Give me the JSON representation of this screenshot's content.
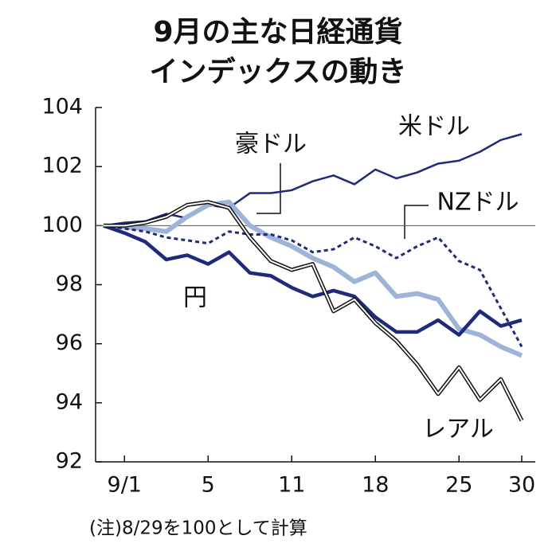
{
  "chart_data": {
    "type": "line",
    "title": [
      "9月の主な日経通貨",
      "インデックスの動き"
    ],
    "note": "(注)8/29を100として計算",
    "categories": [
      null,
      "9/1",
      null,
      null,
      null,
      "5",
      null,
      null,
      null,
      "11",
      null,
      null,
      null,
      "18",
      null,
      null,
      null,
      "25",
      null,
      null,
      "30"
    ],
    "ylim": [
      92,
      104
    ],
    "yticks": [
      92,
      94,
      96,
      98,
      100,
      102,
      104
    ],
    "hline": 100,
    "series": [
      {
        "name": "米ドル",
        "color": "#1f2a7a",
        "style": "thin",
        "values": [
          100,
          100.1,
          100.15,
          100.4,
          100.25,
          100.7,
          100.6,
          101.1,
          101.1,
          101.2,
          101.5,
          101.7,
          101.4,
          101.9,
          101.6,
          101.8,
          102.1,
          102.2,
          102.5,
          102.9,
          103.1
        ]
      },
      {
        "name": "豪ドル",
        "color": "#9db3d8",
        "style": "thick",
        "values": [
          100,
          99.95,
          99.9,
          99.8,
          100.3,
          100.7,
          100.8,
          100.0,
          99.6,
          99.3,
          98.9,
          98.6,
          98.1,
          98.4,
          97.6,
          97.7,
          97.5,
          96.5,
          96.3,
          95.9,
          95.6
        ]
      },
      {
        "name": "NZドル",
        "color": "#1f2a7a",
        "style": "dotted",
        "values": [
          100,
          99.9,
          99.8,
          99.6,
          99.5,
          99.4,
          99.8,
          99.7,
          99.7,
          99.5,
          99.1,
          99.2,
          99.6,
          99.3,
          98.9,
          99.3,
          99.6,
          98.8,
          98.5,
          97.2,
          95.9
        ]
      },
      {
        "name": "円",
        "color": "#1f2a7a",
        "style": "bold",
        "values": [
          100,
          99.75,
          99.45,
          98.85,
          99.0,
          98.7,
          99.1,
          98.4,
          98.3,
          97.9,
          97.6,
          97.8,
          97.6,
          96.9,
          96.4,
          96.4,
          96.8,
          96.3,
          97.1,
          96.6,
          96.8
        ]
      },
      {
        "name": "レアル",
        "color": "#111111",
        "style": "double",
        "values": [
          100,
          100.0,
          100.1,
          100.3,
          100.7,
          100.8,
          100.6,
          99.6,
          98.8,
          98.5,
          98.7,
          97.1,
          97.5,
          96.7,
          96.1,
          95.3,
          94.3,
          95.2,
          94.1,
          94.8,
          93.4
        ]
      }
    ]
  }
}
